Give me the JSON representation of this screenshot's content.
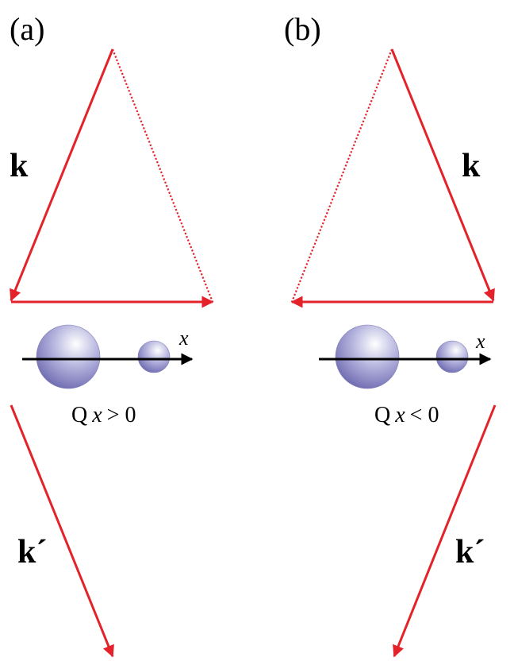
{
  "panels": [
    {
      "label": "(a)",
      "k_label": "k",
      "kprime_label": "k´",
      "axis_label": "x",
      "caption": {
        "q": "Q",
        "x": "x",
        "relation": "> 0"
      }
    },
    {
      "label": "(b)",
      "k_label": "k",
      "kprime_label": "k´",
      "axis_label": "x",
      "caption": {
        "q": "Q",
        "x": "x",
        "relation": "< 0"
      }
    }
  ],
  "colors": {
    "vector": "#e3222a",
    "axis": "#000000",
    "sphere_light": "#ffffff",
    "sphere_mid": "#b9b8e0",
    "sphere_dark": "#6d6ab0"
  }
}
